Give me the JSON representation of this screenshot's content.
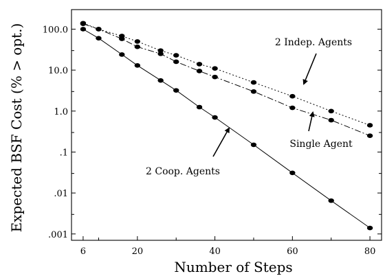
{
  "chart_data": {
    "type": "line",
    "title": "",
    "xlabel": "Number of Steps",
    "ylabel": "Expected BSF Cost  (% > opt.)",
    "x_ticks": [
      6,
      20,
      40,
      60,
      80
    ],
    "x_tick_labels": [
      "6",
      "20",
      "40",
      "60",
      "80"
    ],
    "xlim": [
      3,
      83
    ],
    "yscale": "log",
    "y_ticks": [
      0.001,
      0.01,
      0.1,
      1.0,
      10.0,
      100.0
    ],
    "y_tick_labels": [
      ".001",
      ".01",
      ".1",
      "1.0",
      "10.0",
      "100.0"
    ],
    "ylim": [
      0.0007,
      300
    ],
    "grid": false,
    "legend": "none",
    "series": [
      {
        "name": "2 Indep. Agents",
        "line_style": "dotted",
        "points": [
          {
            "x": 6,
            "y": 140
          },
          {
            "x": 10,
            "y": 100
          },
          {
            "x": 16,
            "y": 68
          },
          {
            "x": 20,
            "y": 50
          },
          {
            "x": 26,
            "y": 30
          },
          {
            "x": 30,
            "y": 23
          },
          {
            "x": 36,
            "y": 14
          },
          {
            "x": 40,
            "y": 11
          },
          {
            "x": 50,
            "y": 5
          },
          {
            "x": 60,
            "y": 2.3
          },
          {
            "x": 70,
            "y": 1.0
          },
          {
            "x": 80,
            "y": 0.45
          }
        ]
      },
      {
        "name": "Single Agent",
        "line_style": "dash-dot",
        "points": [
          {
            "x": 6,
            "y": 135
          },
          {
            "x": 10,
            "y": 100
          },
          {
            "x": 16,
            "y": 58
          },
          {
            "x": 20,
            "y": 37
          },
          {
            "x": 26,
            "y": 25
          },
          {
            "x": 30,
            "y": 16
          },
          {
            "x": 36,
            "y": 9.5
          },
          {
            "x": 40,
            "y": 6.8
          },
          {
            "x": 50,
            "y": 3.0
          },
          {
            "x": 60,
            "y": 1.2
          },
          {
            "x": 70,
            "y": 0.6
          },
          {
            "x": 80,
            "y": 0.25
          }
        ]
      },
      {
        "name": "2 Coop. Agents",
        "line_style": "solid",
        "points": [
          {
            "x": 6,
            "y": 100
          },
          {
            "x": 10,
            "y": 60
          },
          {
            "x": 16,
            "y": 24
          },
          {
            "x": 20,
            "y": 13
          },
          {
            "x": 26,
            "y": 5.6
          },
          {
            "x": 30,
            "y": 3.2
          },
          {
            "x": 36,
            "y": 1.25
          },
          {
            "x": 40,
            "y": 0.7
          },
          {
            "x": 50,
            "y": 0.15
          },
          {
            "x": 60,
            "y": 0.031
          },
          {
            "x": 70,
            "y": 0.0065
          },
          {
            "x": 80,
            "y": 0.0014
          }
        ]
      }
    ],
    "annotations": [
      {
        "text": "2 Indep. Agents",
        "series": "2 Indep. Agents"
      },
      {
        "text": "Single Agent",
        "series": "Single Agent"
      },
      {
        "text": "2 Coop. Agents",
        "series": "2 Coop. Agents"
      }
    ]
  }
}
